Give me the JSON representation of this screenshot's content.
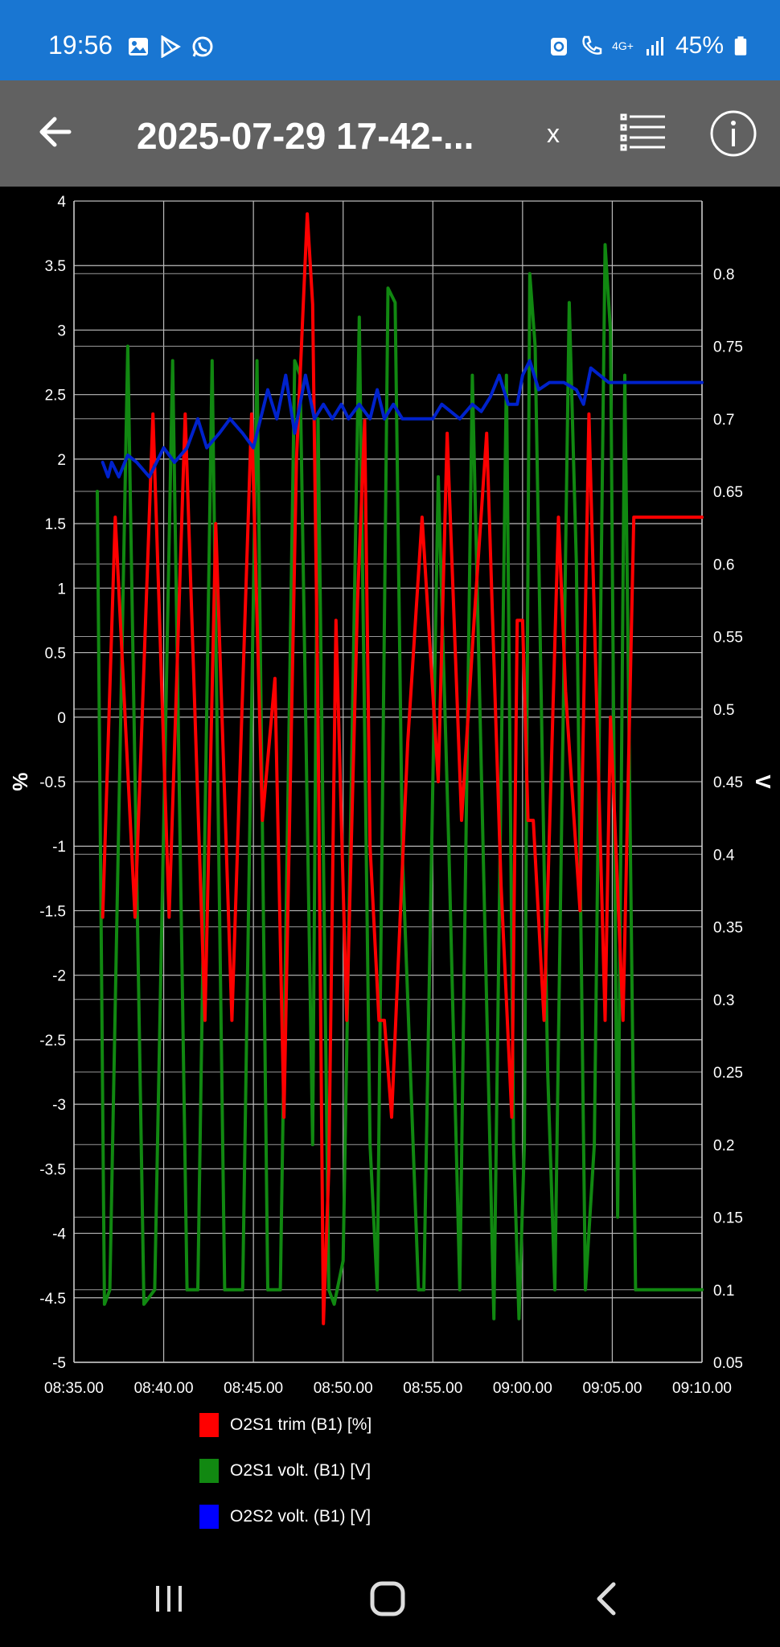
{
  "status_bar": {
    "time": "19:56",
    "network": "4G+",
    "battery": "45%",
    "left_icons": [
      "gallery-icon",
      "play-store-icon",
      "whatsapp-icon"
    ],
    "right_icons": [
      "recycle-icon",
      "call-icon",
      "signal-icon",
      "battery-icon"
    ]
  },
  "app_bar": {
    "back_icon": "back-arrow-icon",
    "title": "2025-07-29 17-42-...",
    "close_label": "x",
    "list_icon": "list-icon",
    "info_icon": "info-icon"
  },
  "chart_data": {
    "type": "line",
    "x_ticks": [
      "08:35.00",
      "08:40.00",
      "08:45.00",
      "08:50.00",
      "08:55.00",
      "09:00.00",
      "09:05.00",
      "09:10.00"
    ],
    "x_range_minutes": [
      35,
      70
    ],
    "left_axis": {
      "label": "%",
      "range": [
        -5,
        4
      ],
      "ticks": [
        "-5",
        "-4.5",
        "-4",
        "-3.5",
        "-3",
        "-2.5",
        "-2",
        "-1.5",
        "-1",
        "-0.5",
        "0",
        "0.5",
        "1",
        "1.5",
        "2",
        "2.5",
        "3",
        "3.5",
        "4"
      ]
    },
    "right_axis": {
      "label": "V",
      "range": [
        0.05,
        0.85
      ],
      "ticks": [
        "0.05",
        "0.1",
        "0.15",
        "0.2",
        "0.25",
        "0.3",
        "0.35",
        "0.4",
        "0.45",
        "0.5",
        "0.55",
        "0.6",
        "0.65",
        "0.7",
        "0.75",
        "0.8"
      ]
    },
    "grid": true,
    "series": [
      {
        "name": "O2S1 trim (B1) [%]",
        "color": "#ff0000",
        "axis": "left",
        "points": [
          [
            36.6,
            -1.55
          ],
          [
            37.3,
            1.55
          ],
          [
            38.4,
            -1.55
          ],
          [
            39.4,
            2.35
          ],
          [
            40.3,
            -1.55
          ],
          [
            41.2,
            2.35
          ],
          [
            42.3,
            -2.35
          ],
          [
            42.9,
            1.5
          ],
          [
            43.8,
            -2.35
          ],
          [
            44.9,
            2.35
          ],
          [
            45.5,
            -0.8
          ],
          [
            46.2,
            0.3
          ],
          [
            46.7,
            -3.1
          ],
          [
            47.4,
            2.0
          ],
          [
            48.0,
            3.9
          ],
          [
            48.3,
            3.2
          ],
          [
            48.6,
            0.0
          ],
          [
            48.9,
            -4.7
          ],
          [
            49.2,
            -3.5
          ],
          [
            49.6,
            0.75
          ],
          [
            50.2,
            -2.35
          ],
          [
            50.8,
            0.9
          ],
          [
            51.2,
            2.3
          ],
          [
            51.5,
            -1.0
          ],
          [
            52.0,
            -2.35
          ],
          [
            52.3,
            -2.35
          ],
          [
            52.7,
            -3.1
          ],
          [
            53.6,
            -0.2
          ],
          [
            54.4,
            1.55
          ],
          [
            55.3,
            -0.5
          ],
          [
            55.8,
            2.2
          ],
          [
            56.6,
            -0.8
          ],
          [
            57.3,
            0.75
          ],
          [
            58.0,
            2.2
          ],
          [
            58.8,
            -1.3
          ],
          [
            59.4,
            -3.1
          ],
          [
            59.7,
            0.75
          ],
          [
            60.0,
            0.75
          ],
          [
            60.3,
            -0.8
          ],
          [
            60.6,
            -0.8
          ],
          [
            61.2,
            -2.35
          ],
          [
            62.0,
            1.55
          ],
          [
            62.4,
            0.2
          ],
          [
            63.2,
            -1.5
          ],
          [
            63.7,
            2.35
          ],
          [
            64.6,
            -2.35
          ],
          [
            64.9,
            0.0
          ],
          [
            65.6,
            -2.35
          ],
          [
            66.2,
            1.55
          ],
          [
            70.0,
            1.55
          ]
        ]
      },
      {
        "name": "O2S1 volt. (B1) [V]",
        "color": "#118811",
        "axis": "right",
        "points": [
          [
            36.3,
            0.65
          ],
          [
            36.7,
            0.09
          ],
          [
            37.0,
            0.1
          ],
          [
            38.0,
            0.75
          ],
          [
            38.9,
            0.09
          ],
          [
            39.5,
            0.1
          ],
          [
            40.5,
            0.74
          ],
          [
            41.3,
            0.1
          ],
          [
            41.9,
            0.1
          ],
          [
            42.7,
            0.74
          ],
          [
            43.4,
            0.1
          ],
          [
            44.4,
            0.1
          ],
          [
            45.2,
            0.74
          ],
          [
            45.8,
            0.1
          ],
          [
            46.5,
            0.1
          ],
          [
            47.3,
            0.74
          ],
          [
            47.6,
            0.73
          ],
          [
            48.3,
            0.2
          ],
          [
            48.6,
            0.7
          ],
          [
            49.2,
            0.1
          ],
          [
            49.5,
            0.09
          ],
          [
            50.0,
            0.12
          ],
          [
            50.9,
            0.77
          ],
          [
            51.5,
            0.2
          ],
          [
            51.9,
            0.1
          ],
          [
            52.5,
            0.79
          ],
          [
            52.9,
            0.78
          ],
          [
            53.3,
            0.4
          ],
          [
            54.2,
            0.1
          ],
          [
            54.5,
            0.1
          ],
          [
            55.3,
            0.66
          ],
          [
            55.9,
            0.4
          ],
          [
            56.5,
            0.1
          ],
          [
            57.2,
            0.73
          ],
          [
            57.9,
            0.35
          ],
          [
            58.4,
            0.08
          ],
          [
            59.1,
            0.73
          ],
          [
            59.5,
            0.2
          ],
          [
            59.8,
            0.08
          ],
          [
            60.1,
            0.2
          ],
          [
            60.4,
            0.8
          ],
          [
            60.7,
            0.75
          ],
          [
            61.4,
            0.25
          ],
          [
            61.8,
            0.1
          ],
          [
            62.6,
            0.78
          ],
          [
            63.0,
            0.6
          ],
          [
            63.5,
            0.1
          ],
          [
            64.0,
            0.2
          ],
          [
            64.6,
            0.82
          ],
          [
            64.9,
            0.76
          ],
          [
            65.3,
            0.15
          ],
          [
            65.7,
            0.73
          ],
          [
            66.3,
            0.1
          ],
          [
            66.5,
            0.1
          ],
          [
            70.0,
            0.1
          ]
        ]
      },
      {
        "name": "O2S2 volt. (B1) [V]",
        "color": "#0022cc",
        "axis": "right",
        "points": [
          [
            36.6,
            0.67
          ],
          [
            36.9,
            0.66
          ],
          [
            37.1,
            0.67
          ],
          [
            37.5,
            0.66
          ],
          [
            38.0,
            0.675
          ],
          [
            38.5,
            0.67
          ],
          [
            39.2,
            0.66
          ],
          [
            40.0,
            0.68
          ],
          [
            40.6,
            0.67
          ],
          [
            41.3,
            0.68
          ],
          [
            41.9,
            0.7
          ],
          [
            42.4,
            0.68
          ],
          [
            43.1,
            0.69
          ],
          [
            43.7,
            0.7
          ],
          [
            44.4,
            0.69
          ],
          [
            45.0,
            0.68
          ],
          [
            45.8,
            0.72
          ],
          [
            46.3,
            0.7
          ],
          [
            46.8,
            0.73
          ],
          [
            47.3,
            0.69
          ],
          [
            47.9,
            0.73
          ],
          [
            48.4,
            0.7
          ],
          [
            48.9,
            0.71
          ],
          [
            49.4,
            0.7
          ],
          [
            49.9,
            0.71
          ],
          [
            50.3,
            0.7
          ],
          [
            50.9,
            0.71
          ],
          [
            51.5,
            0.7
          ],
          [
            51.9,
            0.72
          ],
          [
            52.3,
            0.7
          ],
          [
            52.8,
            0.71
          ],
          [
            53.3,
            0.7
          ],
          [
            54.0,
            0.7
          ],
          [
            55.0,
            0.7
          ],
          [
            55.5,
            0.71
          ],
          [
            56.5,
            0.7
          ],
          [
            57.2,
            0.71
          ],
          [
            57.7,
            0.705
          ],
          [
            58.2,
            0.715
          ],
          [
            58.7,
            0.73
          ],
          [
            59.2,
            0.71
          ],
          [
            59.7,
            0.71
          ],
          [
            60.0,
            0.73
          ],
          [
            60.4,
            0.74
          ],
          [
            60.9,
            0.72
          ],
          [
            61.5,
            0.725
          ],
          [
            62.3,
            0.725
          ],
          [
            63.0,
            0.72
          ],
          [
            63.4,
            0.71
          ],
          [
            63.8,
            0.735
          ],
          [
            64.3,
            0.73
          ],
          [
            64.8,
            0.725
          ],
          [
            66.0,
            0.725
          ],
          [
            70.0,
            0.725
          ]
        ]
      }
    ]
  },
  "legend": [
    {
      "label": "O2S1 trim (B1) [%]",
      "color": "#ff0000"
    },
    {
      "label": "O2S1 volt. (B1) [V]",
      "color": "#118811"
    },
    {
      "label": "O2S2 volt. (B1) [V]",
      "color": "#0022cc"
    }
  ],
  "nav_bar": {
    "recents_icon": "recents-icon",
    "home_icon": "home-icon",
    "back_icon": "nav-back-icon"
  }
}
